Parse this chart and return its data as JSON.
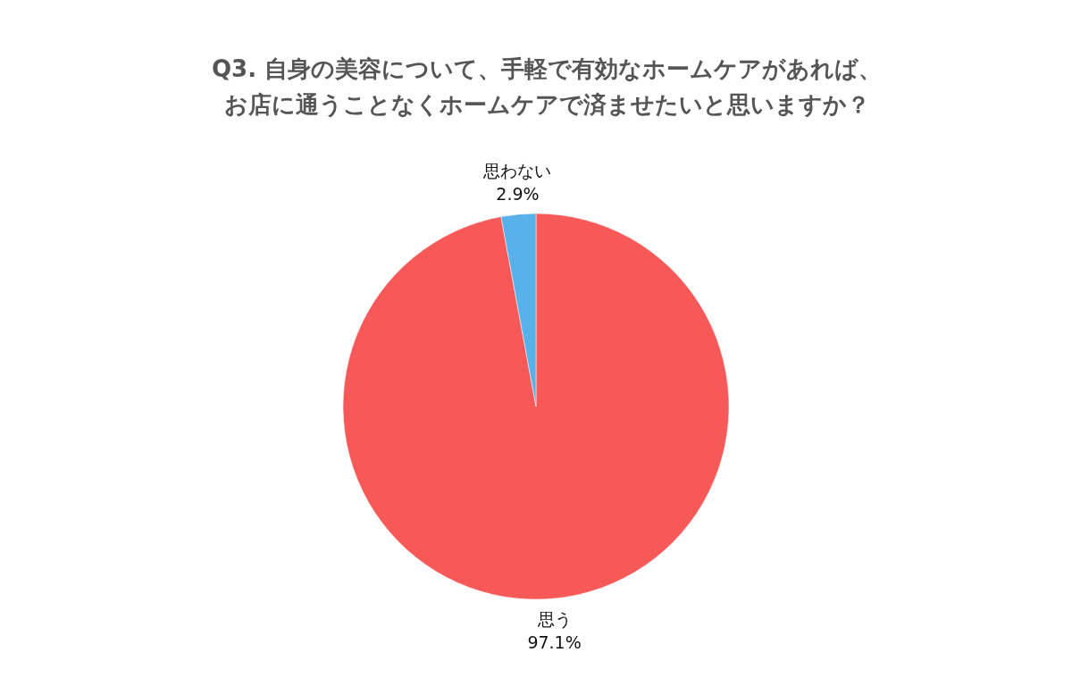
{
  "chart_data": {
    "type": "pie",
    "title": "Q3. 自身の美容について、手軽で有効なホームケアがあれば、お店に通うことなくホームケアで済ませたいと思いますか？",
    "categories": [
      "思う",
      "思わない"
    ],
    "values": [
      97.1,
      2.9
    ],
    "value_labels": [
      "97.1%",
      "2.9%"
    ],
    "colors": [
      "#f75858",
      "#58b1e9"
    ]
  }
}
